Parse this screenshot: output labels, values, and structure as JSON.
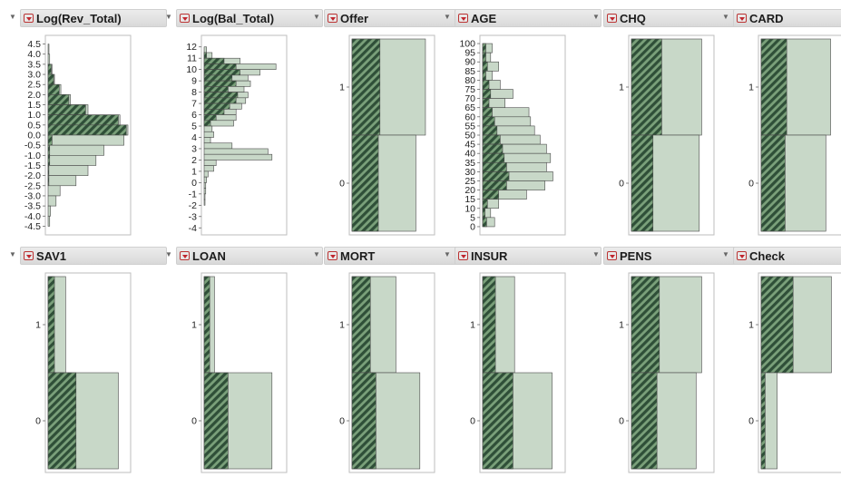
{
  "colors": {
    "bar_fill": "#c8d8c8",
    "bar_stroke": "#4a4a4a",
    "selected_stripe_dark": "#2f4f38",
    "selected_stripe_light": "#7aa07a",
    "header_bg": "#e0e0e0",
    "menu_arrow": "#c0262e"
  },
  "icons": {
    "disclosure": "disclosure-triangle-icon",
    "menu": "red-triangle-menu-icon"
  },
  "panels": [
    {
      "title": "Log(Rev_Total)",
      "type": "histogram",
      "ticks": [
        "4.5",
        "4.0",
        "3.5",
        "3.0",
        "2.5",
        "2.0",
        "1.5",
        "1.0",
        "0.5",
        "0.0",
        "-0.5",
        "-1.0",
        "-1.5",
        "-2.0",
        "-2.5",
        "-3.0",
        "-3.5",
        "-4.0",
        "-4.5"
      ]
    },
    {
      "title": "Log(Bal_Total)",
      "type": "histogram",
      "ticks": [
        "12",
        "11",
        "10",
        "9",
        "8",
        "7",
        "6",
        "5",
        "4",
        "3",
        "2",
        "1",
        "0",
        "-1",
        "-2",
        "-3",
        "-4"
      ]
    },
    {
      "title": "Offer",
      "type": "categorical",
      "ticks": [
        "1",
        "0"
      ]
    },
    {
      "title": "AGE",
      "type": "histogram",
      "ticks": [
        "100",
        "95",
        "90",
        "85",
        "80",
        "75",
        "70",
        "65",
        "60",
        "55",
        "50",
        "45",
        "40",
        "35",
        "30",
        "25",
        "20",
        "15",
        "10",
        "5",
        "0"
      ]
    },
    {
      "title": "CHQ",
      "type": "categorical",
      "ticks": [
        "1",
        "0"
      ]
    },
    {
      "title": "CARD",
      "type": "categorical",
      "ticks": [
        "1",
        "0"
      ]
    },
    {
      "title": "SAV1",
      "type": "categorical",
      "ticks": [
        "1",
        "0"
      ]
    },
    {
      "title": "LOAN",
      "type": "categorical",
      "ticks": [
        "1",
        "0"
      ]
    },
    {
      "title": "MORT",
      "type": "categorical",
      "ticks": [
        "1",
        "0"
      ]
    },
    {
      "title": "INSUR",
      "type": "categorical",
      "ticks": [
        "1",
        "0"
      ]
    },
    {
      "title": "PENS",
      "type": "categorical",
      "ticks": [
        "1",
        "0"
      ]
    },
    {
      "title": "Check",
      "type": "categorical",
      "ticks": [
        "1",
        "0"
      ]
    }
  ],
  "chart_data": [
    {
      "type": "bar",
      "title": "Log(Rev_Total)",
      "orientation": "horizontal",
      "ylim": [
        -4.75,
        4.75
      ],
      "bins": [
        {
          "y": 4.25,
          "total": 0.01,
          "selected": 0
        },
        {
          "y": 3.75,
          "total": 0.02,
          "selected": 0
        },
        {
          "y": 3.25,
          "total": 0.05,
          "selected": 0.04
        },
        {
          "y": 2.75,
          "total": 0.08,
          "selected": 0.07
        },
        {
          "y": 2.25,
          "total": 0.16,
          "selected": 0.14
        },
        {
          "y": 1.75,
          "total": 0.28,
          "selected": 0.26
        },
        {
          "y": 1.25,
          "total": 0.5,
          "selected": 0.47
        },
        {
          "y": 0.75,
          "total": 0.9,
          "selected": 0.88
        },
        {
          "y": 0.25,
          "total": 1.0,
          "selected": 0.98
        },
        {
          "y": -0.25,
          "total": 0.95,
          "selected": 0.05
        },
        {
          "y": -0.75,
          "total": 0.7,
          "selected": 0.02
        },
        {
          "y": -1.25,
          "total": 0.6,
          "selected": 0.02
        },
        {
          "y": -1.75,
          "total": 0.5,
          "selected": 0.01
        },
        {
          "y": -2.25,
          "total": 0.35,
          "selected": 0.01
        },
        {
          "y": -2.75,
          "total": 0.15,
          "selected": 0
        },
        {
          "y": -3.25,
          "total": 0.1,
          "selected": 0
        },
        {
          "y": -3.75,
          "total": 0.03,
          "selected": 0
        },
        {
          "y": -4.25,
          "total": 0.02,
          "selected": 0
        }
      ]
    },
    {
      "type": "bar",
      "title": "Log(Bal_Total)",
      "orientation": "horizontal",
      "ylim": [
        -4.3,
        12.7
      ],
      "bins": [
        {
          "y": 11.75,
          "total": 0.03,
          "selected": 0
        },
        {
          "y": 11.25,
          "total": 0.1,
          "selected": 0.03
        },
        {
          "y": 10.75,
          "total": 0.45,
          "selected": 0.25
        },
        {
          "y": 10.25,
          "total": 0.9,
          "selected": 0.4
        },
        {
          "y": 9.75,
          "total": 0.7,
          "selected": 0.45
        },
        {
          "y": 9.25,
          "total": 0.55,
          "selected": 0.35
        },
        {
          "y": 8.75,
          "total": 0.58,
          "selected": 0.4
        },
        {
          "y": 8.25,
          "total": 0.5,
          "selected": 0.3
        },
        {
          "y": 7.75,
          "total": 0.55,
          "selected": 0.42
        },
        {
          "y": 7.25,
          "total": 0.52,
          "selected": 0.4
        },
        {
          "y": 6.75,
          "total": 0.47,
          "selected": 0.32
        },
        {
          "y": 6.25,
          "total": 0.4,
          "selected": 0.25
        },
        {
          "y": 5.75,
          "total": 0.4,
          "selected": 0.15
        },
        {
          "y": 5.25,
          "total": 0.37,
          "selected": 0.08
        },
        {
          "y": 4.75,
          "total": 0.1,
          "selected": 0
        },
        {
          "y": 4.25,
          "total": 0.12,
          "selected": 0
        },
        {
          "y": 3.75,
          "total": 0.08,
          "selected": 0
        },
        {
          "y": 3.25,
          "total": 0.35,
          "selected": 0
        },
        {
          "y": 2.75,
          "total": 0.8,
          "selected": 0
        },
        {
          "y": 2.25,
          "total": 0.85,
          "selected": 0
        },
        {
          "y": 1.75,
          "total": 0.15,
          "selected": 0
        },
        {
          "y": 1.25,
          "total": 0.12,
          "selected": 0
        },
        {
          "y": 0.75,
          "total": 0.05,
          "selected": 0
        },
        {
          "y": 0.25,
          "total": 0.03,
          "selected": 0
        },
        {
          "y": -0.25,
          "total": 0.02,
          "selected": 0
        },
        {
          "y": -0.75,
          "total": 0.02,
          "selected": 0
        },
        {
          "y": -1.25,
          "total": 0.01,
          "selected": 0
        },
        {
          "y": -1.75,
          "total": 0.01,
          "selected": 0
        }
      ]
    },
    {
      "type": "bar",
      "title": "Offer",
      "orientation": "horizontal",
      "categories": [
        "1",
        "0"
      ],
      "share": [
        0.5,
        0.5
      ],
      "total": [
        0.92,
        0.8
      ],
      "selected": [
        0.35,
        0.33
      ]
    },
    {
      "type": "bar",
      "title": "AGE",
      "orientation": "horizontal",
      "ylim": [
        -2.5,
        102.5
      ],
      "bins": [
        {
          "y": 97.5,
          "total": 0.12,
          "selected": 0.04
        },
        {
          "y": 92.5,
          "total": 0.1,
          "selected": 0.04
        },
        {
          "y": 87.5,
          "total": 0.2,
          "selected": 0.06
        },
        {
          "y": 82.5,
          "total": 0.12,
          "selected": 0.04
        },
        {
          "y": 77.5,
          "total": 0.22,
          "selected": 0.08
        },
        {
          "y": 72.5,
          "total": 0.38,
          "selected": 0.1
        },
        {
          "y": 67.5,
          "total": 0.28,
          "selected": 0.08
        },
        {
          "y": 62.5,
          "total": 0.58,
          "selected": 0.12
        },
        {
          "y": 57.5,
          "total": 0.6,
          "selected": 0.15
        },
        {
          "y": 52.5,
          "total": 0.65,
          "selected": 0.18
        },
        {
          "y": 47.5,
          "total": 0.72,
          "selected": 0.22
        },
        {
          "y": 42.5,
          "total": 0.8,
          "selected": 0.25
        },
        {
          "y": 37.5,
          "total": 0.85,
          "selected": 0.27
        },
        {
          "y": 32.5,
          "total": 0.8,
          "selected": 0.3
        },
        {
          "y": 27.5,
          "total": 0.88,
          "selected": 0.33
        },
        {
          "y": 22.5,
          "total": 0.78,
          "selected": 0.3
        },
        {
          "y": 17.5,
          "total": 0.55,
          "selected": 0.2
        },
        {
          "y": 12.5,
          "total": 0.2,
          "selected": 0.06
        },
        {
          "y": 7.5,
          "total": 0.1,
          "selected": 0.03
        },
        {
          "y": 2.5,
          "total": 0.15,
          "selected": 0.05
        }
      ]
    },
    {
      "type": "bar",
      "title": "CHQ",
      "orientation": "horizontal",
      "categories": [
        "1",
        "0"
      ],
      "share": [
        0.5,
        0.5
      ],
      "total": [
        0.88,
        0.85
      ],
      "selected": [
        0.38,
        0.27
      ]
    },
    {
      "type": "bar",
      "title": "CARD",
      "orientation": "horizontal",
      "categories": [
        "1",
        "0"
      ],
      "share": [
        0.5,
        0.5
      ],
      "total": [
        0.87,
        0.81
      ],
      "selected": [
        0.32,
        0.3
      ]
    },
    {
      "type": "bar",
      "title": "SAV1",
      "orientation": "horizontal",
      "categories": [
        "1",
        "0"
      ],
      "share": [
        0.5,
        0.5
      ],
      "total": [
        0.22,
        0.88
      ],
      "selected": [
        0.08,
        0.35
      ]
    },
    {
      "type": "bar",
      "title": "LOAN",
      "orientation": "horizontal",
      "categories": [
        "1",
        "0"
      ],
      "share": [
        0.5,
        0.5
      ],
      "total": [
        0.13,
        0.85
      ],
      "selected": [
        0.07,
        0.3
      ]
    },
    {
      "type": "bar",
      "title": "MORT",
      "orientation": "horizontal",
      "categories": [
        "1",
        "0"
      ],
      "share": [
        0.5,
        0.5
      ],
      "total": [
        0.55,
        0.85
      ],
      "selected": [
        0.23,
        0.3
      ]
    },
    {
      "type": "bar",
      "title": "INSUR",
      "orientation": "horizontal",
      "categories": [
        "1",
        "0"
      ],
      "share": [
        0.5,
        0.5
      ],
      "total": [
        0.4,
        0.87
      ],
      "selected": [
        0.16,
        0.38
      ]
    },
    {
      "type": "bar",
      "title": "PENS",
      "orientation": "horizontal",
      "categories": [
        "1",
        "0"
      ],
      "share": [
        0.5,
        0.5
      ],
      "total": [
        0.88,
        0.81
      ],
      "selected": [
        0.35,
        0.32
      ]
    },
    {
      "type": "bar",
      "title": "Check",
      "orientation": "horizontal",
      "categories": [
        "1",
        "0"
      ],
      "share": [
        0.5,
        0.5
      ],
      "total": [
        0.88,
        0.2
      ],
      "selected": [
        0.4,
        0.05
      ]
    }
  ]
}
